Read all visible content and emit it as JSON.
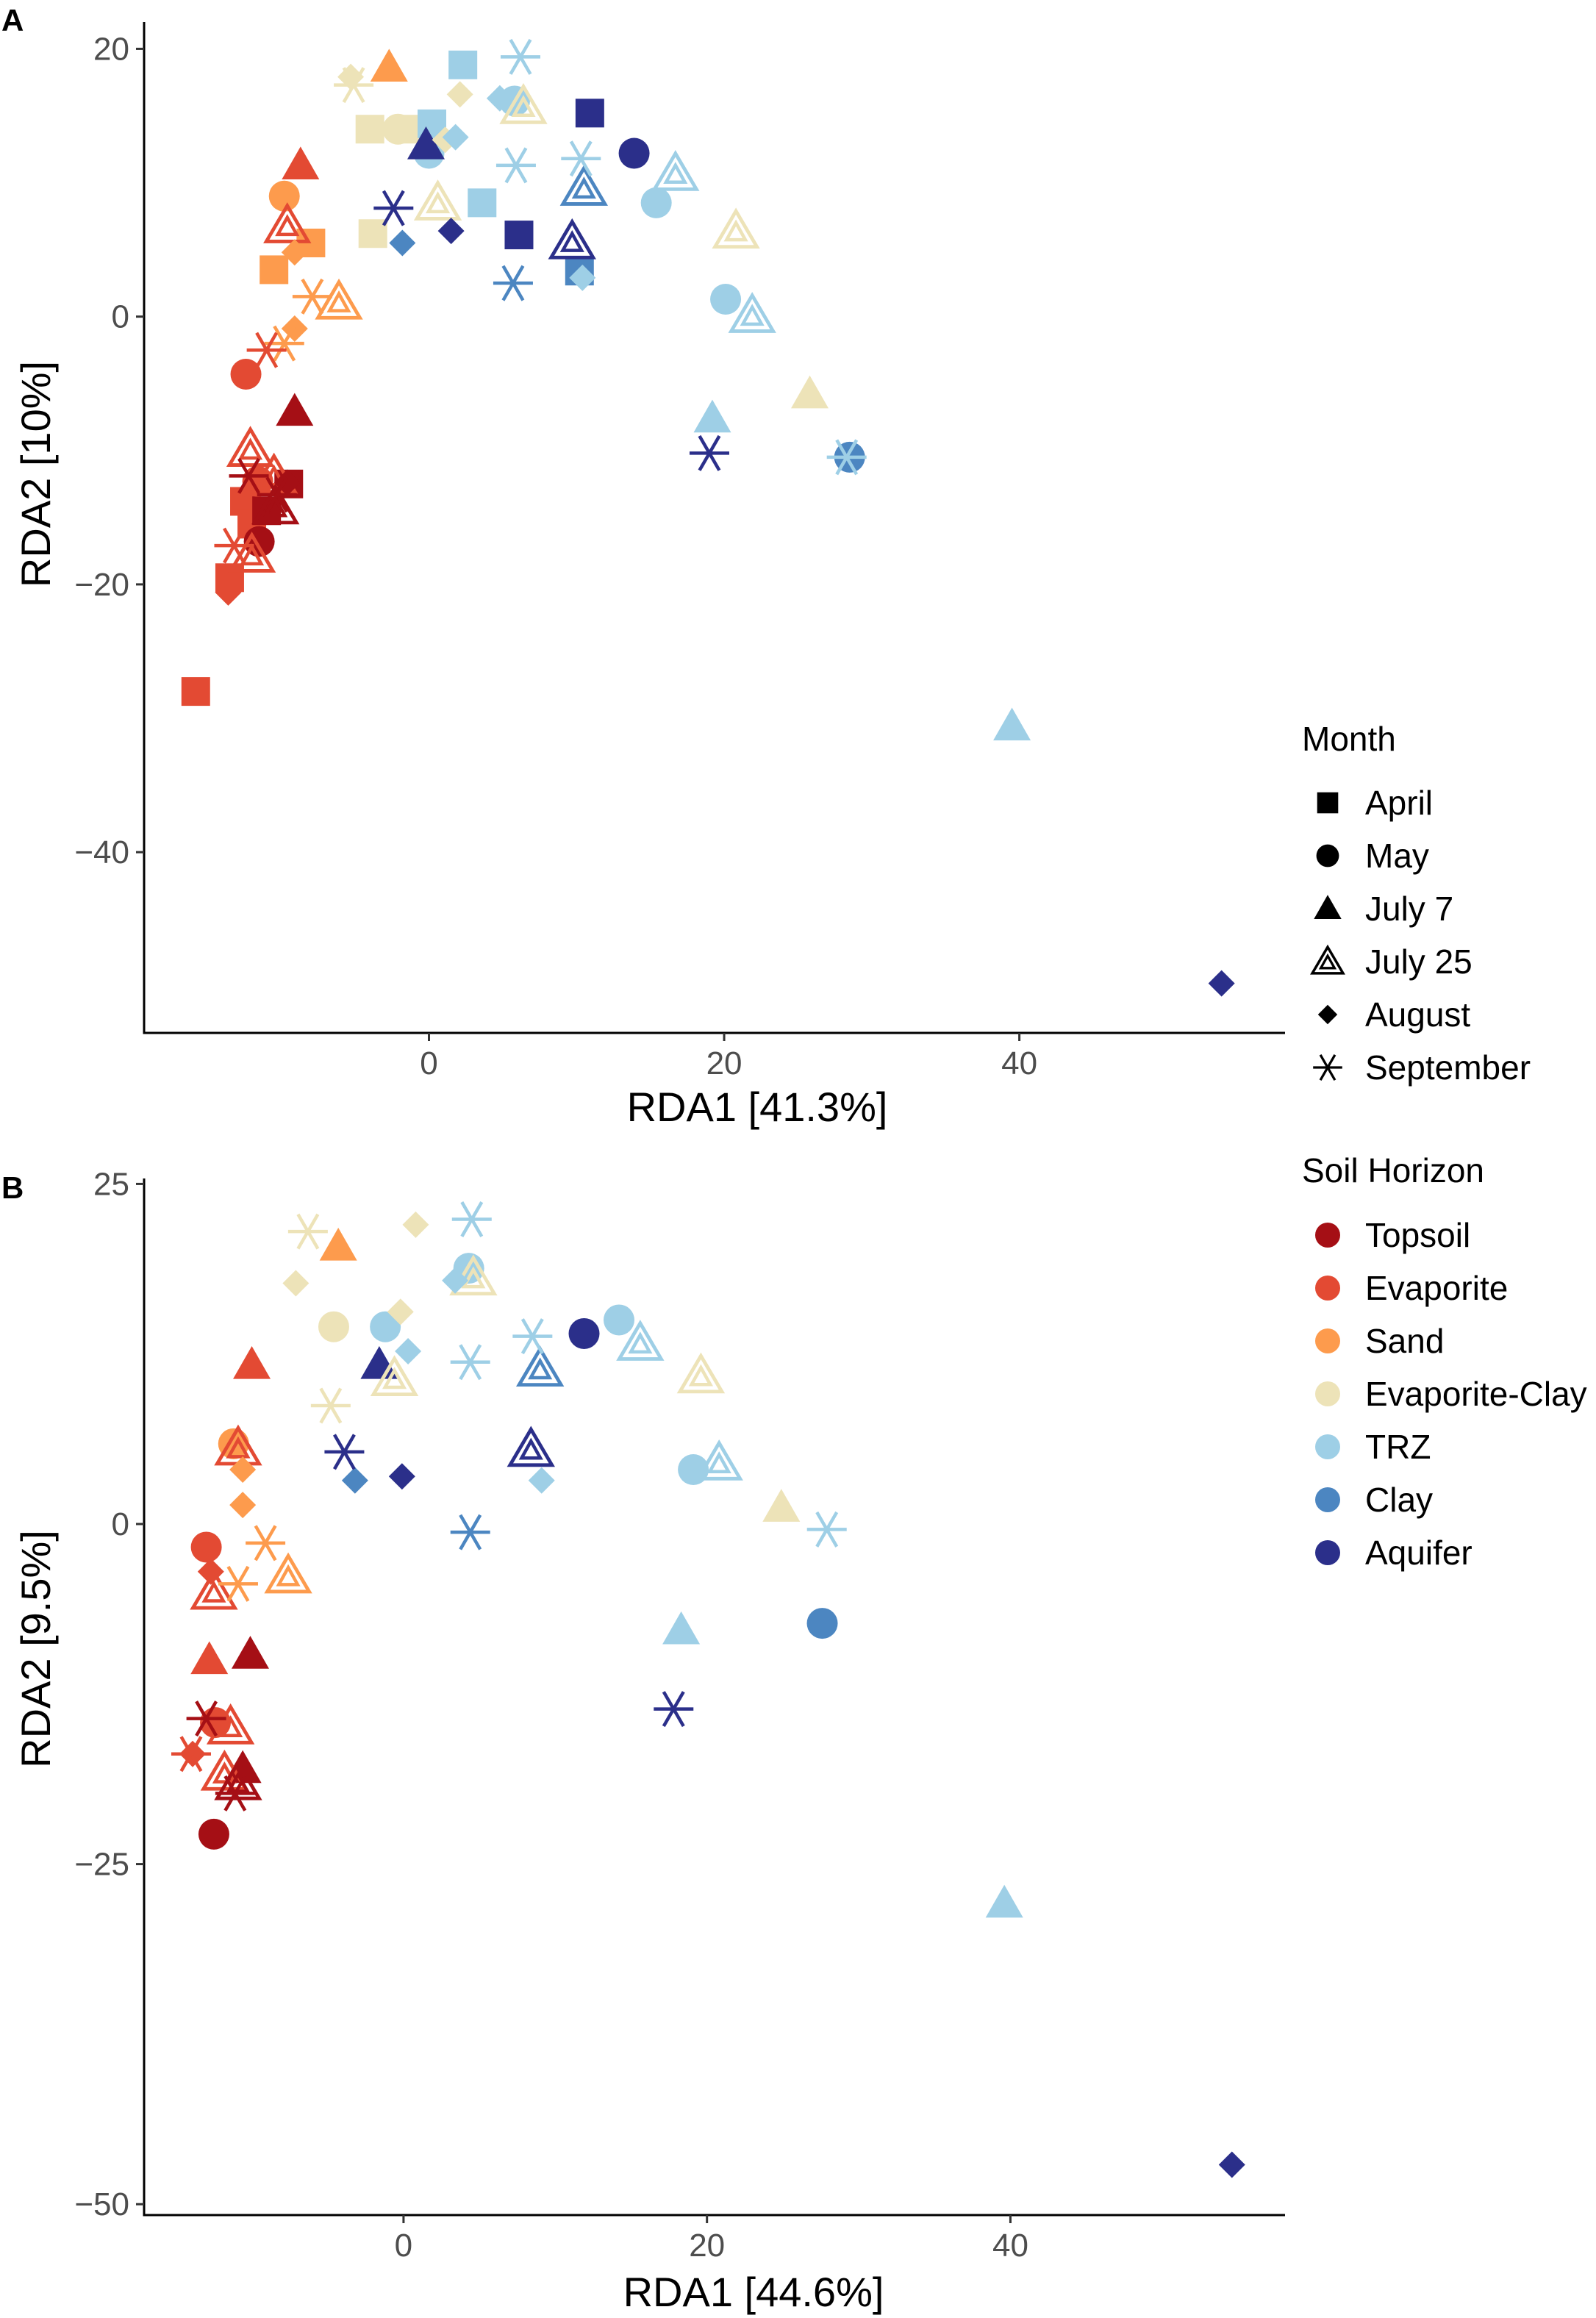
{
  "figure": {
    "panel_labels": [
      "A",
      "B"
    ]
  },
  "legend": {
    "month": {
      "title": "Month",
      "items": [
        {
          "label": "April",
          "shape": "square"
        },
        {
          "label": "May",
          "shape": "circle"
        },
        {
          "label": "July 7",
          "shape": "triangle"
        },
        {
          "label": "July 25",
          "shape": "triangle-open"
        },
        {
          "label": "August",
          "shape": "diamond"
        },
        {
          "label": "September",
          "shape": "asterisk"
        }
      ]
    },
    "horizon": {
      "title": "Soil Horizon",
      "items": [
        {
          "label": "Topsoil",
          "color": "#A50F15"
        },
        {
          "label": "Evaporite",
          "color": "#E34A33"
        },
        {
          "label": "Sand",
          "color": "#FD9B4D"
        },
        {
          "label": "Evaporite-Clay",
          "color": "#EDE3B8"
        },
        {
          "label": "TRZ",
          "color": "#9ECFE6"
        },
        {
          "label": "Clay",
          "color": "#4C86C1"
        },
        {
          "label": "Aquifer",
          "color": "#2B2F8A"
        }
      ]
    }
  },
  "chart_data": [
    {
      "type": "scatter",
      "panel": "A",
      "title": "",
      "xlabel": "RDA1   [41.3%]",
      "ylabel": "RDA2   [10%]",
      "xlim": [
        -19.3,
        58
      ],
      "ylim": [
        -53.5,
        22
      ],
      "xticks": [
        0,
        20,
        40
      ],
      "yticks": [
        20,
        0,
        -20,
        -40
      ],
      "points": [
        {
          "x": -4,
          "y": 14,
          "month": "April",
          "horizon": "Evaporite-Clay"
        },
        {
          "x": -1,
          "y": 14,
          "month": "April",
          "horizon": "Evaporite-Clay"
        },
        {
          "x": -3.8,
          "y": 6.2,
          "month": "April",
          "horizon": "Evaporite-Clay"
        },
        {
          "x": -10.5,
          "y": 3.5,
          "month": "April",
          "horizon": "Sand"
        },
        {
          "x": -8,
          "y": 5.5,
          "month": "April",
          "horizon": "Sand"
        },
        {
          "x": -12.5,
          "y": -13.8,
          "month": "April",
          "horizon": "Evaporite"
        },
        {
          "x": -12,
          "y": -15.5,
          "month": "April",
          "horizon": "Evaporite"
        },
        {
          "x": -13.5,
          "y": -19.5,
          "month": "April",
          "horizon": "Evaporite"
        },
        {
          "x": -15.8,
          "y": -28,
          "month": "April",
          "horizon": "Evaporite"
        },
        {
          "x": -9.5,
          "y": -12.5,
          "month": "April",
          "horizon": "Topsoil"
        },
        {
          "x": -11,
          "y": -14.5,
          "month": "April",
          "horizon": "Topsoil"
        },
        {
          "x": 2.3,
          "y": 18.8,
          "month": "April",
          "horizon": "TRZ"
        },
        {
          "x": 0.2,
          "y": 14.4,
          "month": "April",
          "horizon": "TRZ"
        },
        {
          "x": 3.6,
          "y": 8.5,
          "month": "April",
          "horizon": "TRZ"
        },
        {
          "x": 10.9,
          "y": 15.2,
          "month": "April",
          "horizon": "Aquifer"
        },
        {
          "x": 6.1,
          "y": 6.1,
          "month": "April",
          "horizon": "Aquifer"
        },
        {
          "x": 10.2,
          "y": 3.4,
          "month": "April",
          "horizon": "Clay"
        },
        {
          "x": -2.1,
          "y": 14,
          "month": "May",
          "horizon": "Evaporite-Clay"
        },
        {
          "x": 0,
          "y": 12.2,
          "month": "May",
          "horizon": "TRZ"
        },
        {
          "x": 5.8,
          "y": 16.1,
          "month": "May",
          "horizon": "TRZ"
        },
        {
          "x": 15.4,
          "y": 8.5,
          "month": "May",
          "horizon": "TRZ"
        },
        {
          "x": 20.1,
          "y": 1.3,
          "month": "May",
          "horizon": "TRZ"
        },
        {
          "x": 13.9,
          "y": 12.2,
          "month": "May",
          "horizon": "Aquifer"
        },
        {
          "x": 28.5,
          "y": -10.5,
          "month": "May",
          "horizon": "Clay"
        },
        {
          "x": -9.8,
          "y": 9,
          "month": "May",
          "horizon": "Sand"
        },
        {
          "x": -12.4,
          "y": -4.3,
          "month": "May",
          "horizon": "Evaporite"
        },
        {
          "x": -11.6,
          "y": -12.3,
          "month": "May",
          "horizon": "Evaporite"
        },
        {
          "x": -11.5,
          "y": -16.8,
          "month": "May",
          "horizon": "Topsoil"
        },
        {
          "x": -2.7,
          "y": 18.6,
          "month": "July 7",
          "horizon": "Sand"
        },
        {
          "x": -8.7,
          "y": 11.3,
          "month": "July 7",
          "horizon": "Evaporite"
        },
        {
          "x": -9.1,
          "y": -7.1,
          "month": "July 7",
          "horizon": "Topsoil"
        },
        {
          "x": -0.2,
          "y": 12.8,
          "month": "July 7",
          "horizon": "Aquifer"
        },
        {
          "x": 19.2,
          "y": -7.6,
          "month": "July 7",
          "horizon": "TRZ"
        },
        {
          "x": 25.8,
          "y": -5.8,
          "month": "July 7",
          "horizon": "Evaporite-Clay"
        },
        {
          "x": 39.5,
          "y": -30.6,
          "month": "July 7",
          "horizon": "TRZ"
        },
        {
          "x": 6.4,
          "y": 15.7,
          "month": "July 25",
          "horizon": "Evaporite-Clay"
        },
        {
          "x": 0.6,
          "y": 8.5,
          "month": "July 25",
          "horizon": "Evaporite-Clay"
        },
        {
          "x": 20.8,
          "y": 6.4,
          "month": "July 25",
          "horizon": "Evaporite-Clay"
        },
        {
          "x": 16.7,
          "y": 10.7,
          "month": "July 25",
          "horizon": "TRZ"
        },
        {
          "x": 21.9,
          "y": 0.1,
          "month": "July 25",
          "horizon": "TRZ"
        },
        {
          "x": 10.5,
          "y": 9.6,
          "month": "July 25",
          "horizon": "Clay"
        },
        {
          "x": 9.7,
          "y": 5.6,
          "month": "July 25",
          "horizon": "Aquifer"
        },
        {
          "x": -6.1,
          "y": 1.1,
          "month": "July 25",
          "horizon": "Sand"
        },
        {
          "x": -9.6,
          "y": 6.8,
          "month": "July 25",
          "horizon": "Evaporite"
        },
        {
          "x": -12.1,
          "y": -9.9,
          "month": "July 25",
          "horizon": "Evaporite"
        },
        {
          "x": -10.5,
          "y": -11.9,
          "month": "July 25",
          "horizon": "Evaporite"
        },
        {
          "x": -12,
          "y": -17.8,
          "month": "July 25",
          "horizon": "Evaporite"
        },
        {
          "x": -10.4,
          "y": -14.2,
          "month": "July 25",
          "horizon": "Topsoil"
        },
        {
          "x": -5.3,
          "y": 17.9,
          "month": "August",
          "horizon": "Evaporite-Clay"
        },
        {
          "x": 2.1,
          "y": 16.6,
          "month": "August",
          "horizon": "Evaporite-Clay"
        },
        {
          "x": 1.1,
          "y": 13.2,
          "month": "August",
          "horizon": "Evaporite-Clay"
        },
        {
          "x": 4.8,
          "y": 16.3,
          "month": "August",
          "horizon": "TRZ"
        },
        {
          "x": 1.8,
          "y": 13.4,
          "month": "August",
          "horizon": "TRZ"
        },
        {
          "x": 10.4,
          "y": 2.9,
          "month": "August",
          "horizon": "TRZ"
        },
        {
          "x": -1.8,
          "y": 5.5,
          "month": "August",
          "horizon": "Clay"
        },
        {
          "x": 1.5,
          "y": 6.4,
          "month": "August",
          "horizon": "Aquifer"
        },
        {
          "x": 53.7,
          "y": -49.8,
          "month": "August",
          "horizon": "Aquifer"
        },
        {
          "x": -9.1,
          "y": 4.8,
          "month": "August",
          "horizon": "Sand"
        },
        {
          "x": -9.1,
          "y": -0.9,
          "month": "August",
          "horizon": "Sand"
        },
        {
          "x": -13.6,
          "y": -20.6,
          "month": "August",
          "horizon": "Evaporite"
        },
        {
          "x": -9.6,
          "y": -12.4,
          "month": "August",
          "horizon": "Topsoil"
        },
        {
          "x": -5.1,
          "y": 17.3,
          "month": "September",
          "horizon": "Evaporite-Clay"
        },
        {
          "x": 6.2,
          "y": 19.4,
          "month": "September",
          "horizon": "TRZ"
        },
        {
          "x": 5.9,
          "y": 11.3,
          "month": "September",
          "horizon": "TRZ"
        },
        {
          "x": 10.3,
          "y": 11.8,
          "month": "September",
          "horizon": "TRZ"
        },
        {
          "x": 28.3,
          "y": -10.5,
          "month": "September",
          "horizon": "TRZ"
        },
        {
          "x": 5.7,
          "y": 2.5,
          "month": "September",
          "horizon": "Clay"
        },
        {
          "x": -2.4,
          "y": 8.1,
          "month": "September",
          "horizon": "Aquifer"
        },
        {
          "x": 19,
          "y": -10.2,
          "month": "September",
          "horizon": "Aquifer"
        },
        {
          "x": -7.9,
          "y": 1.5,
          "month": "September",
          "horizon": "Sand"
        },
        {
          "x": -9.8,
          "y": -2,
          "month": "September",
          "horizon": "Sand"
        },
        {
          "x": -11,
          "y": -2.5,
          "month": "September",
          "horizon": "Evaporite"
        },
        {
          "x": -13.2,
          "y": -17.1,
          "month": "September",
          "horizon": "Evaporite"
        },
        {
          "x": -12.2,
          "y": -11.9,
          "month": "September",
          "horizon": "Topsoil"
        },
        {
          "x": -10.3,
          "y": -13.3,
          "month": "September",
          "horizon": "Topsoil"
        }
      ]
    },
    {
      "type": "scatter",
      "panel": "B",
      "title": "",
      "xlabel": "RDA1   [44.6%]",
      "ylabel": "RDA2   [9.5%]",
      "xlim": [
        -17.1,
        58.1
      ],
      "ylim": [
        -50.8,
        25.4
      ],
      "xticks": [
        0,
        20,
        40
      ],
      "yticks": [
        25,
        0,
        -25,
        -50
      ],
      "points": [
        {
          "x": -4.3,
          "y": 20.4,
          "month": "July 7",
          "horizon": "Sand"
        },
        {
          "x": -10,
          "y": 11.7,
          "month": "July 7",
          "horizon": "Evaporite"
        },
        {
          "x": -1.6,
          "y": 11.7,
          "month": "July 7",
          "horizon": "Aquifer"
        },
        {
          "x": -12.8,
          "y": -10,
          "month": "July 7",
          "horizon": "Evaporite"
        },
        {
          "x": -10.1,
          "y": -9.6,
          "month": "July 7",
          "horizon": "Topsoil"
        },
        {
          "x": -10.6,
          "y": -18,
          "month": "July 7",
          "horizon": "Topsoil"
        },
        {
          "x": 18.3,
          "y": -7.8,
          "month": "July 7",
          "horizon": "TRZ"
        },
        {
          "x": 24.9,
          "y": 1.2,
          "month": "July 7",
          "horizon": "Evaporite-Clay"
        },
        {
          "x": 39.6,
          "y": -27.9,
          "month": "July 7",
          "horizon": "TRZ"
        },
        {
          "x": 4.3,
          "y": 18.8,
          "month": "May",
          "horizon": "TRZ"
        },
        {
          "x": -4.6,
          "y": 14.5,
          "month": "May",
          "horizon": "Evaporite-Clay"
        },
        {
          "x": -1.2,
          "y": 14.5,
          "month": "May",
          "horizon": "TRZ"
        },
        {
          "x": 11.9,
          "y": 14,
          "month": "May",
          "horizon": "Aquifer"
        },
        {
          "x": 14.2,
          "y": 15,
          "month": "May",
          "horizon": "TRZ"
        },
        {
          "x": 19.1,
          "y": 4,
          "month": "May",
          "horizon": "TRZ"
        },
        {
          "x": 27.6,
          "y": -7.3,
          "month": "May",
          "horizon": "Clay"
        },
        {
          "x": -11.2,
          "y": 5.9,
          "month": "May",
          "horizon": "Sand"
        },
        {
          "x": -13,
          "y": -1.7,
          "month": "May",
          "horizon": "Evaporite"
        },
        {
          "x": -12.4,
          "y": -14.6,
          "month": "May",
          "horizon": "Evaporite"
        },
        {
          "x": -12.5,
          "y": -22.8,
          "month": "May",
          "horizon": "Topsoil"
        },
        {
          "x": 4.6,
          "y": 18.1,
          "month": "July 25",
          "horizon": "Evaporite-Clay"
        },
        {
          "x": -0.6,
          "y": 10.7,
          "month": "July 25",
          "horizon": "Evaporite-Clay"
        },
        {
          "x": 19.6,
          "y": 10.9,
          "month": "July 25",
          "horizon": "Evaporite-Clay"
        },
        {
          "x": 15.6,
          "y": 13.3,
          "month": "July 25",
          "horizon": "TRZ"
        },
        {
          "x": 20.8,
          "y": 4.5,
          "month": "July 25",
          "horizon": "TRZ"
        },
        {
          "x": 9,
          "y": 11.4,
          "month": "July 25",
          "horizon": "Clay"
        },
        {
          "x": 8.4,
          "y": 5.5,
          "month": "July 25",
          "horizon": "Aquifer"
        },
        {
          "x": -7.6,
          "y": -3.8,
          "month": "July 25",
          "horizon": "Sand"
        },
        {
          "x": -10.9,
          "y": 5.6,
          "month": "July 25",
          "horizon": "Evaporite"
        },
        {
          "x": -12.5,
          "y": -5,
          "month": "July 25",
          "horizon": "Evaporite"
        },
        {
          "x": -11.4,
          "y": -14.9,
          "month": "July 25",
          "horizon": "Evaporite"
        },
        {
          "x": -11.8,
          "y": -18.3,
          "month": "July 25",
          "horizon": "Evaporite"
        },
        {
          "x": -10.9,
          "y": -19,
          "month": "July 25",
          "horizon": "Topsoil"
        },
        {
          "x": -10.6,
          "y": 4,
          "month": "August",
          "horizon": "Sand"
        },
        {
          "x": -10.6,
          "y": 1.4,
          "month": "August",
          "horizon": "Sand"
        },
        {
          "x": -12.7,
          "y": -3.5,
          "month": "August",
          "horizon": "Evaporite"
        },
        {
          "x": -13.9,
          "y": -16.9,
          "month": "August",
          "horizon": "Evaporite"
        },
        {
          "x": -7.1,
          "y": 17.7,
          "month": "August",
          "horizon": "Evaporite-Clay"
        },
        {
          "x": 0.8,
          "y": 22,
          "month": "August",
          "horizon": "Evaporite-Clay"
        },
        {
          "x": -0.2,
          "y": 15.6,
          "month": "August",
          "horizon": "Evaporite-Clay"
        },
        {
          "x": 3.4,
          "y": 17.9,
          "month": "August",
          "horizon": "TRZ"
        },
        {
          "x": 0.3,
          "y": 12.7,
          "month": "August",
          "horizon": "TRZ"
        },
        {
          "x": 9.1,
          "y": 3.2,
          "month": "August",
          "horizon": "TRZ"
        },
        {
          "x": -3.2,
          "y": 3.2,
          "month": "August",
          "horizon": "Clay"
        },
        {
          "x": -0.1,
          "y": 3.5,
          "month": "August",
          "horizon": "Aquifer"
        },
        {
          "x": 54.6,
          "y": -47.1,
          "month": "August",
          "horizon": "Aquifer"
        },
        {
          "x": -6.3,
          "y": 21.5,
          "month": "September",
          "horizon": "Evaporite-Clay"
        },
        {
          "x": -4.8,
          "y": 8.7,
          "month": "September",
          "horizon": "Evaporite-Clay"
        },
        {
          "x": 4.5,
          "y": 22.4,
          "month": "September",
          "horizon": "TRZ"
        },
        {
          "x": 4.4,
          "y": 11.9,
          "month": "September",
          "horizon": "TRZ"
        },
        {
          "x": 8.5,
          "y": 13.8,
          "month": "September",
          "horizon": "TRZ"
        },
        {
          "x": 27.9,
          "y": -0.4,
          "month": "September",
          "horizon": "TRZ"
        },
        {
          "x": 4.4,
          "y": -0.6,
          "month": "September",
          "horizon": "Clay"
        },
        {
          "x": -3.9,
          "y": 5.3,
          "month": "September",
          "horizon": "Aquifer"
        },
        {
          "x": 17.8,
          "y": -13.6,
          "month": "September",
          "horizon": "Aquifer"
        },
        {
          "x": -9.1,
          "y": -1.4,
          "month": "September",
          "horizon": "Sand"
        },
        {
          "x": -10.9,
          "y": -4.4,
          "month": "September",
          "horizon": "Sand"
        },
        {
          "x": -14,
          "y": -16.9,
          "month": "September",
          "horizon": "Evaporite"
        },
        {
          "x": -13,
          "y": -14.3,
          "month": "September",
          "horizon": "Topsoil"
        },
        {
          "x": -11.1,
          "y": -19.8,
          "month": "September",
          "horizon": "Topsoil"
        }
      ]
    }
  ]
}
